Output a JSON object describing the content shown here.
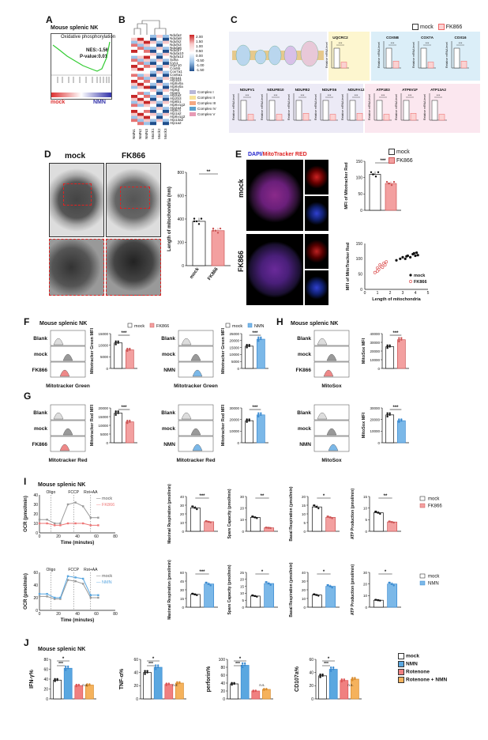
{
  "panels": {
    "A": {
      "letter": "A",
      "title": "Mouse splenic NK",
      "set": "Oxidative phosphorylation",
      "nes": "NES:-1.56",
      "p": "P-value:0.01",
      "left": "mock",
      "right": "NMN"
    },
    "B": {
      "letter": "B",
      "samples": [
        "NMN1",
        "NMN2",
        "NMN3",
        "Mock1",
        "Mock2",
        "Mock3"
      ],
      "genes": [
        "Ndufa2",
        "Ndufa8",
        "Ndufs2",
        "Ndufs3",
        "Ndufa6",
        "Ndufb7",
        "Ndufa10",
        "Ndufa12",
        "Sdha",
        "Cyc1",
        "Uqcr10",
        "Cox5b",
        "Cox7a1",
        "Cox6a1",
        "Atp1a1",
        "Atp1b3",
        "Atp5v0a",
        "Atp6v0a",
        "Atp5d",
        "Atpaf1",
        "Atp2a2",
        "Atp2b3",
        "Atp8b1",
        "Atp6v1g2",
        "Atp2a4",
        "Atp5c1",
        "Atp1a2",
        "Atp6v1g2",
        "Atp13a2",
        "Atp1a2"
      ],
      "scale": [
        "2.00",
        "1.50",
        "1.00",
        "0.50",
        "0.00",
        "-0.50",
        "-1.00",
        "-1.50"
      ],
      "complexes": [
        "Complex I",
        "Complex II",
        "Complex III",
        "Complex IV",
        "Complex V"
      ],
      "complex_colors": [
        "#b8b8d8",
        "#f6e39a",
        "#f4a882",
        "#5aa0cc",
        "#e79ab5"
      ]
    },
    "C": {
      "letter": "C",
      "legend_mock": "mock",
      "legend_fk": "FK866",
      "ylabel": "Relative mRNA level",
      "top": [
        "UQCRC2",
        "COX5B",
        "COX7A",
        "COX16"
      ],
      "bottom": [
        "NDUFV1",
        "NDUFB10",
        "NDUFB2",
        "NDUFS6",
        "NDUFA12",
        "ATP1B3",
        "ATP6V1F",
        "ATP13A2"
      ],
      "chart_data": {
        "type": "bar",
        "categories": [
          "UQCRC2",
          "COX5B",
          "COX7A",
          "COX16",
          "NDUFV1",
          "NDUFB10",
          "NDUFB2",
          "NDUFS6",
          "NDUFA12",
          "ATP1B3",
          "ATP6V1F",
          "ATP13A2"
        ],
        "series": [
          {
            "name": "mock",
            "values": [
              1,
              1,
              1,
              1,
              1,
              1,
              1,
              1,
              1,
              1,
              1,
              1
            ]
          },
          {
            "name": "FK866",
            "values": [
              0.3,
              0.35,
              0.3,
              0.35,
              0.3,
              0.3,
              0.35,
              0.3,
              0.35,
              0.3,
              0.35,
              0.3
            ]
          }
        ]
      }
    },
    "D": {
      "letter": "D",
      "left": "mock",
      "right": "FK866",
      "ylabel": "Length of mitochondria (nm)",
      "sig": "**",
      "chart_data": {
        "type": "bar",
        "categories": [
          "mock",
          "FK866"
        ],
        "values": [
          380,
          300
        ],
        "ylim": [
          0,
          800
        ],
        "yticks": [
          "0",
          "200",
          "400",
          "600",
          "800"
        ]
      }
    },
    "E": {
      "letter": "E",
      "title_dapi": "DAPI/",
      "title_mito": "MitoTracker RED",
      "row1": "mock",
      "row2": "FK866",
      "legend_mock": "mock",
      "legend_fk": "FK866",
      "bar_ylabel": "MFI of Mitotracker Red",
      "sig": "***",
      "scatter_ylabel": "MFI of MitoTracker Red",
      "scatter_xlabel": "Length of mitochondria",
      "chart_data": [
        {
          "type": "bar",
          "categories": [
            "mock",
            "FK866"
          ],
          "values": [
            110,
            82
          ],
          "ylim": [
            0,
            150
          ],
          "yticks": [
            "0",
            "50",
            "100",
            "150"
          ]
        },
        {
          "type": "scatter",
          "xlim": [
            0,
            5
          ],
          "ylim": [
            0,
            150
          ],
          "xticks": [
            "0",
            "1",
            "2",
            "3",
            "4",
            "5"
          ],
          "yticks": [
            "0",
            "50",
            "100",
            "150"
          ],
          "series": [
            {
              "name": "mock",
              "x": [
                2.5,
                2.8,
                3.0,
                3.2,
                3.4,
                3.6,
                3.8,
                4.0,
                4.1,
                4.2,
                3.3,
                3.9
              ],
              "y": [
                95,
                100,
                105,
                100,
                110,
                105,
                115,
                110,
                120,
                112,
                108,
                118
              ]
            },
            {
              "name": "FK866",
              "x": [
                0.8,
                1.0,
                1.1,
                1.2,
                1.3,
                1.5,
                1.6,
                1.7,
                1.4,
                1.0
              ],
              "y": [
                55,
                70,
                65,
                80,
                75,
                85,
                80,
                90,
                72,
                60
              ]
            }
          ]
        }
      ]
    },
    "F": {
      "letter": "F",
      "title": "Mouse splenic NK",
      "rows1": [
        "Blank",
        "mock",
        "FK866"
      ],
      "rows2": [
        "Blank",
        "mock",
        "NMN"
      ],
      "xlabel": "Mitotracker Green",
      "ylabel": "Mitotracker Green MFI",
      "legend_mock": "mock",
      "legend_fk": "FK866",
      "legend_nmn": "NMN",
      "sig": "***",
      "chart_data": [
        {
          "type": "bar",
          "categories": [
            "mock",
            "FK866"
          ],
          "values": [
            11000,
            8000
          ],
          "ylim": [
            0,
            15000
          ],
          "yticks": [
            "0",
            "5000",
            "10000",
            "15000"
          ]
        },
        {
          "type": "bar",
          "categories": [
            "mock",
            "NMN"
          ],
          "values": [
            16000,
            21000
          ],
          "ylim": [
            0,
            25000
          ],
          "yticks": [
            "0",
            "5000",
            "10000",
            "15000",
            "20000",
            "25000"
          ]
        }
      ]
    },
    "G": {
      "letter": "G",
      "rows1": [
        "Blank",
        "mock",
        "FK866"
      ],
      "rows2": [
        "Blank",
        "mock",
        "NMN"
      ],
      "xlabel": "Mitotracker Red",
      "ylabel": "Mitotracker Red MFI",
      "sig": "***",
      "chart_data": [
        {
          "type": "bar",
          "categories": [
            "mock",
            "FK866"
          ],
          "values": [
            17000,
            12000
          ],
          "ylim": [
            0,
            20000
          ],
          "yticks": [
            "0",
            "5000",
            "10000",
            "15000",
            "20000"
          ]
        },
        {
          "type": "bar",
          "categories": [
            "mock",
            "NMN"
          ],
          "values": [
            19000,
            24000
          ],
          "ylim": [
            0,
            30000
          ],
          "yticks": [
            "0",
            "10000",
            "20000",
            "30000"
          ]
        }
      ]
    },
    "H": {
      "letter": "H",
      "title": "Mouse splenic NK",
      "rows1": [
        "Blank",
        "mock",
        "FK866"
      ],
      "rows2": [
        "Blank",
        "mock",
        "NMN"
      ],
      "xlabel": "MitoSox",
      "ylabel": "MitoSox MFI",
      "sig": "***",
      "chart_data": [
        {
          "type": "bar",
          "categories": [
            "mock",
            "FK866"
          ],
          "values": [
            25000,
            33000
          ],
          "ylim": [
            0,
            40000
          ],
          "yticks": [
            "0",
            "10000",
            "20000",
            "30000",
            "40000"
          ]
        },
        {
          "type": "bar",
          "categories": [
            "mock",
            "NMN"
          ],
          "values": [
            24000,
            19000
          ],
          "ylim": [
            0,
            30000
          ],
          "yticks": [
            "0",
            "10000",
            "20000",
            "30000"
          ]
        }
      ]
    },
    "I": {
      "letter": "I",
      "title": "Mouse splenic NK",
      "ocr_ylabel": "OCR (pmol/min)",
      "xlabel": "Time (minutes)",
      "inj": [
        "Oligo",
        "FCCP",
        "Rot+AA"
      ],
      "metrics": [
        "Maximal Respiration (pmol/min)",
        "Spare Capacity (pmol/min)",
        "Basal Respiration (pmol/min)",
        "ATP Production (pmol/min)"
      ],
      "chart_data": [
        {
          "type": "line",
          "x": [
            0,
            8,
            16,
            22,
            30,
            38,
            46,
            54,
            62
          ],
          "series": [
            {
              "name": "mock",
              "values": [
                14,
                14,
                10,
                10,
                30,
                32,
                28,
                16,
                16
              ]
            },
            {
              "name": "FK866",
              "values": [
                10,
                10,
                8,
                8,
                10,
                10,
                10,
                8,
                8
              ]
            }
          ],
          "ylim": [
            0,
            40
          ],
          "xlim": [
            0,
            80
          ]
        },
        {
          "type": "bar",
          "categories": [
            "mock",
            "FK866"
          ],
          "values": [
            27,
            11
          ],
          "ylim": [
            0,
            40
          ],
          "sig": "***"
        },
        {
          "type": "bar",
          "categories": [
            "mock",
            "FK866"
          ],
          "values": [
            12,
            3
          ],
          "ylim": [
            0,
            30
          ],
          "sig": "**"
        },
        {
          "type": "bar",
          "categories": [
            "mock",
            "FK866"
          ],
          "values": [
            14,
            8
          ],
          "ylim": [
            0,
            20
          ],
          "sig": "*"
        },
        {
          "type": "bar",
          "categories": [
            "mock",
            "FK866"
          ],
          "values": [
            8,
            4
          ],
          "ylim": [
            0,
            15
          ],
          "sig": "**"
        },
        {
          "type": "line",
          "x": [
            0,
            8,
            16,
            22,
            30,
            38,
            46,
            54,
            62
          ],
          "series": [
            {
              "name": "mock",
              "values": [
                22,
                22,
                18,
                18,
                48,
                46,
                42,
                20,
                20
              ]
            },
            {
              "name": "NMN",
              "values": [
                26,
                26,
                20,
                20,
                54,
                52,
                50,
                24,
                24
              ]
            }
          ],
          "ylim": [
            0,
            60
          ],
          "xlim": [
            0,
            80
          ]
        },
        {
          "type": "bar",
          "categories": [
            "mock",
            "NMN"
          ],
          "values": [
            22,
            40
          ],
          "ylim": [
            0,
            60
          ],
          "sig": "***"
        },
        {
          "type": "bar",
          "categories": [
            "mock",
            "NMN"
          ],
          "values": [
            8,
            17
          ],
          "ylim": [
            0,
            25
          ],
          "sig": "*"
        },
        {
          "type": "bar",
          "categories": [
            "mock",
            "NMN"
          ],
          "values": [
            14,
            24
          ],
          "ylim": [
            0,
            40
          ],
          "sig": "*"
        },
        {
          "type": "bar",
          "categories": [
            "mock",
            "NMN"
          ],
          "values": [
            6,
            20
          ],
          "ylim": [
            0,
            30
          ],
          "sig": "*"
        }
      ]
    },
    "J": {
      "letter": "J",
      "title": "Mouse splenic NK",
      "groups": [
        "mock",
        "NMN",
        "Rotenone",
        "Rotenone + NMN"
      ],
      "group_colors": [
        "#ffffff",
        "#5aa7e0",
        "#f08080",
        "#f5b25c"
      ],
      "chart_data": [
        {
          "type": "bar",
          "ylabel": "IFN-γ%",
          "categories": [
            "mock",
            "NMN",
            "Rotenone",
            "Rotenone + NMN"
          ],
          "values": [
            38,
            62,
            27,
            28
          ],
          "ylim": [
            0,
            80
          ],
          "yticks": [
            "0",
            "20",
            "40",
            "60",
            "80"
          ]
        },
        {
          "type": "bar",
          "ylabel": "TNF-α%",
          "categories": [
            "mock",
            "NMN",
            "Rotenone",
            "Rotenone + NMN"
          ],
          "values": [
            40,
            48,
            22,
            24
          ],
          "ylim": [
            0,
            60
          ],
          "yticks": [
            "0",
            "20",
            "40",
            "60"
          ]
        },
        {
          "type": "bar",
          "ylabel": "perforin%",
          "categories": [
            "mock",
            "NMN",
            "Rotenone",
            "Rotenone + NMN"
          ],
          "values": [
            38,
            85,
            20,
            24
          ],
          "ylim": [
            0,
            100
          ],
          "yticks": [
            "0",
            "20",
            "40",
            "60",
            "80",
            "100"
          ]
        },
        {
          "type": "bar",
          "ylabel": "CD107a%",
          "categories": [
            "mock",
            "NMN",
            "Rotenone",
            "Rotenone + NMN"
          ],
          "values": [
            35,
            45,
            28,
            30
          ],
          "ylim": [
            0,
            60
          ],
          "yticks": [
            "0",
            "20",
            "40",
            "60"
          ]
        }
      ]
    }
  }
}
